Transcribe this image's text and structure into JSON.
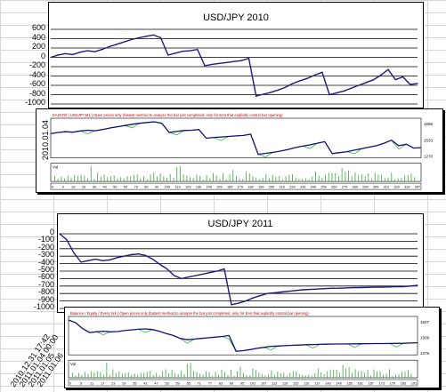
{
  "charts": {
    "top": {
      "title": "USD/JPY 2010",
      "yticks": [
        "600",
        "400",
        "200",
        "0",
        "-200",
        "-400",
        "-600",
        "-800",
        "-1000"
      ],
      "ylim": [
        -1000,
        600
      ]
    },
    "bottom": {
      "title": "USD/JPY 2011",
      "yticks": [
        "0",
        "-100",
        "-200",
        "-300",
        "-400",
        "-500",
        "-600",
        "-700",
        "-800",
        "-900",
        "-1000"
      ],
      "ylim": [
        -1000,
        0
      ]
    }
  },
  "chart_data": [
    {
      "type": "line",
      "title": "USD/JPY 2010",
      "ylim": [
        -1000,
        600
      ],
      "grid": true,
      "x": [
        0,
        2,
        4,
        6,
        8,
        10,
        12,
        14,
        16,
        18,
        20,
        22,
        24,
        26,
        28,
        30,
        32,
        34,
        36,
        38,
        40,
        42,
        44,
        46,
        48,
        50,
        52,
        54,
        56,
        58,
        60,
        62,
        64,
        66,
        68,
        70,
        72,
        74,
        76,
        78,
        80,
        82,
        84,
        86,
        88,
        90,
        92,
        94,
        96,
        98,
        100
      ],
      "values": [
        0,
        50,
        80,
        60,
        110,
        140,
        120,
        170,
        230,
        280,
        330,
        380,
        420,
        450,
        480,
        420,
        50,
        90,
        130,
        140,
        170,
        -180,
        -150,
        -130,
        -110,
        -90,
        -70,
        -20,
        -830,
        -790,
        -750,
        -700,
        -640,
        -560,
        -500,
        -450,
        -380,
        -320,
        -800,
        -760,
        -720,
        -660,
        -600,
        -540,
        -480,
        -380,
        -260,
        -480,
        -420,
        -580,
        -560
      ]
    },
    {
      "type": "line",
      "title": "USD/JPY 2011",
      "ylim": [
        -1000,
        0
      ],
      "grid": true,
      "x": [
        0,
        2,
        4,
        6,
        8,
        10,
        12,
        14,
        16,
        18,
        20,
        22,
        24,
        26,
        28,
        30,
        32,
        34,
        36,
        38,
        40,
        42,
        44,
        46,
        48,
        50,
        52,
        54,
        56,
        58,
        60,
        62,
        64,
        66,
        68,
        70,
        72,
        74,
        76,
        78,
        80,
        82,
        84,
        86,
        88,
        90,
        92,
        94,
        96,
        98,
        100
      ],
      "values": [
        0,
        -80,
        -260,
        -380,
        -360,
        -340,
        -360,
        -350,
        -320,
        -300,
        -280,
        -270,
        -290,
        -340,
        -410,
        -470,
        -560,
        -600,
        -580,
        -560,
        -540,
        -520,
        -500,
        -470,
        -950,
        -930,
        -900,
        -860,
        -830,
        -800,
        -790,
        -780,
        -770,
        -760,
        -750,
        -745,
        -740,
        -735,
        -730,
        -728,
        -725,
        -722,
        -720,
        -718,
        -716,
        -714,
        -712,
        -710,
        -708,
        -700,
        -690
      ]
    }
  ],
  "mt4": {
    "top": {
      "date_label": "2010.01.04",
      "header": "EA2CR0 | USDJPY,M1 | Open prices only (fastest method to analyze the bar just completed, only for EAs that explicitly control bar opening)",
      "right_values": [
        "1696",
        "1533",
        "1270"
      ],
      "volume_label": "Vol",
      "xticks": [
        "0",
        "9",
        "19",
        "29",
        "39",
        "49",
        "59",
        "69",
        "79",
        "89",
        "99",
        "109",
        "119",
        "129",
        "139",
        "149",
        "159",
        "169",
        "179",
        "189",
        "199",
        "209",
        "219",
        "229",
        "239",
        "249",
        "259",
        "269",
        "279",
        "289",
        "299",
        "309",
        "319",
        "329",
        "339",
        "347"
      ]
    },
    "bottom": {
      "date_labels": [
        "2010.12.31 17:42",
        "2011.01.04 00:00",
        "2011.01.05",
        "2011.01.06"
      ],
      "header": "Balance / Equity / Every tick | Open prices only (fastest method to analyze the bar just completed, only for EAs that explicitly control bar opening)",
      "right_values": [
        "1607",
        "1509",
        "1379"
      ],
      "volume_label": "Vol",
      "xticks": [
        "0",
        "5",
        "11",
        "17",
        "23",
        "29",
        "35",
        "41",
        "47",
        "53",
        "59",
        "65",
        "71",
        "77",
        "83",
        "89",
        "95",
        "101",
        "107",
        "113",
        "119",
        "125",
        "131",
        "137",
        "143",
        "149",
        "155",
        "161",
        "167",
        "173",
        "179",
        "185",
        "191"
      ]
    }
  }
}
